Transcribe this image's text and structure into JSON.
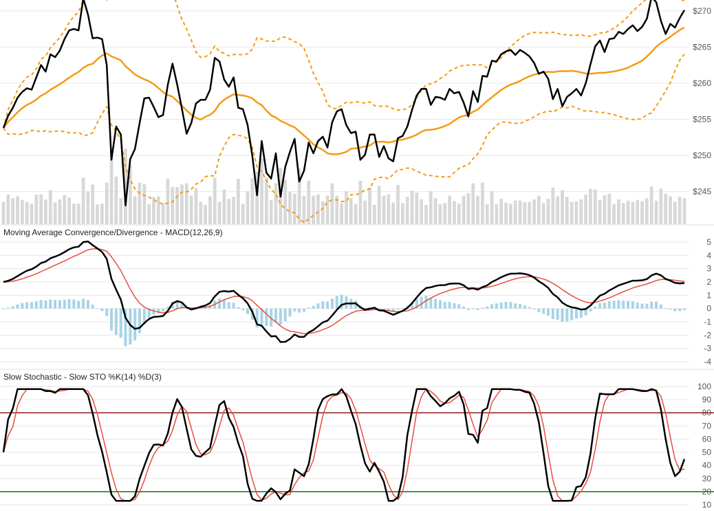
{
  "colors": {
    "price": "#000000",
    "bollinger_mid": "#f39c12",
    "bollinger_band": "#f39c12",
    "volume": "#d8d8d8",
    "macd_line": "#000000",
    "signal_line": "#e74c3c",
    "histogram": "#a8d4e6",
    "stoch_k": "#000000",
    "stoch_d": "#e74c3c",
    "overbought": "#8b1a1a",
    "oversold": "#1a6b1a",
    "grid": "#e6e6e6"
  },
  "chart_data": [
    {
      "type": "line",
      "panel": "price",
      "title": "",
      "ylim": [
        240.5,
        271.5
      ],
      "y_ticks": [
        245,
        250,
        255,
        260,
        265,
        270
      ],
      "y_tick_labels": [
        "$245",
        "$250",
        "$255",
        "$260",
        "$265",
        "$270"
      ],
      "n_points": 117,
      "series": [
        {
          "role": "close",
          "values": [
            253.8,
            255.5,
            256.6,
            258.0,
            258.8,
            259.3,
            259.1,
            260.8,
            262.5,
            261.6,
            264.0,
            263.6,
            264.5,
            266.1,
            267.3,
            267.5,
            267.3,
            271.7,
            269.5,
            266.2,
            266.3,
            266.1,
            262.5,
            249.4,
            254.0,
            252.9,
            243.1,
            249.5,
            250.9,
            254.5,
            257.9,
            258.0,
            256.7,
            255.3,
            255.6,
            259.8,
            262.7,
            259.8,
            256.5,
            253.0,
            254.5,
            257.2,
            257.7,
            257.7,
            259.1,
            263.5,
            263.0,
            260.5,
            259.5,
            260.8,
            256.6,
            256.4,
            254.2,
            249.9,
            244.5,
            252.0,
            247.6,
            246.8,
            250.3,
            244.3,
            248.4,
            250.5,
            252.3,
            246.4,
            247.9,
            251.8,
            250.3,
            252.0,
            252.6,
            251.1,
            254.6,
            256.1,
            256.4,
            254.2,
            253.1,
            253.3,
            249.4,
            250.1,
            252.9,
            252.9,
            249.8,
            251.3,
            249.6,
            249.2,
            252.4,
            252.7,
            254.0,
            256.3,
            258.3,
            259.2,
            259.2,
            257.0,
            258.1,
            258.0,
            257.7,
            259.2,
            258.6,
            258.8,
            257.3,
            255.4,
            258.9,
            257.4,
            261.0,
            260.9,
            263.1,
            263.0,
            264.0,
            264.4,
            264.6,
            263.9,
            264.6,
            264.2,
            263.7,
            262.8,
            261.3,
            261.6,
            260.6
          ]
        }
      ],
      "note": "close values shown here are the first 117 visible points; the rest continue in series_tail",
      "series_tail": [
        257.8,
        259.2,
        256.8,
        258.1,
        258.6,
        259.2,
        258.3,
        260.0,
        262.6,
        265.1,
        265.9,
        264.3,
        266.1,
        266.2,
        267.1,
        266.8,
        267.5,
        268.0,
        267.2,
        267.8,
        268.9,
        271.9,
        271.2,
        268.6,
        266.8,
        268.2,
        267.7,
        269.0,
        270.1
      ]
    },
    {
      "type": "line",
      "panel": "macd",
      "title": "Moving Average Convergence/Divergence - MACD(12,26,9)",
      "ylim": [
        -4,
        5
      ],
      "y_ticks": [
        -4,
        -3,
        -2,
        -1,
        0,
        1,
        2,
        3,
        4,
        5
      ],
      "y_tick_labels": [
        "-4",
        "-3",
        "-2",
        "-1",
        "0",
        "1",
        "2",
        "3",
        "4",
        "5"
      ]
    },
    {
      "type": "line",
      "panel": "stochastic",
      "title": "Slow Stochastic - Slow STO %K(14) %D(3)",
      "ylim": [
        10,
        100
      ],
      "y_ticks": [
        10,
        20,
        30,
        40,
        50,
        60,
        70,
        80,
        90,
        100
      ],
      "y_tick_labels": [
        "10",
        "20",
        "30",
        "40",
        "50",
        "60",
        "70",
        "80",
        "90",
        "100"
      ],
      "overbought": 80,
      "oversold": 20
    }
  ]
}
